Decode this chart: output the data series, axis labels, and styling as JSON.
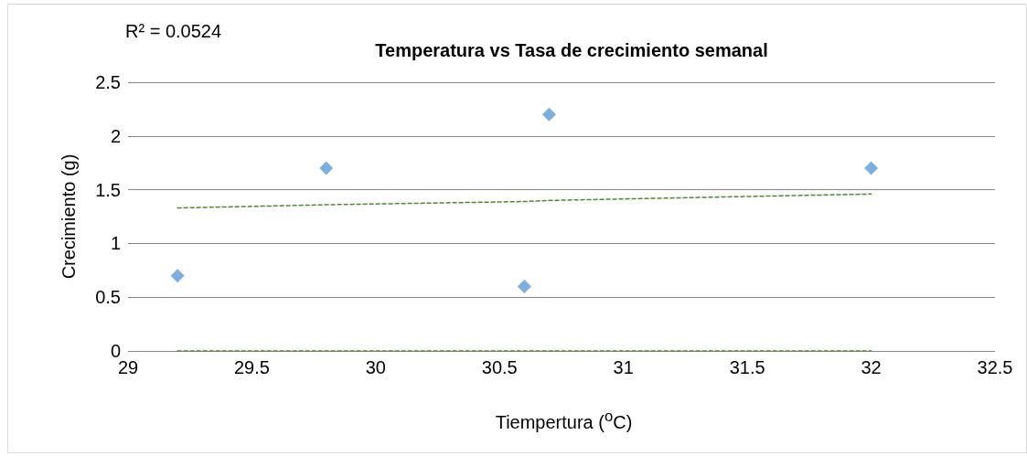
{
  "chart_data": {
    "type": "scatter",
    "title": "Temperatura vs Tasa de crecimiento semanal",
    "xlabel": "Tiempertura ($^{o}$C)",
    "ylabel": "Crecimiento (g)",
    "annotations": [
      "R² = 0.0524"
    ],
    "x": [
      29.2,
      29.8,
      30.6,
      30.7,
      32
    ],
    "series": [
      {
        "color": "#5b9bd5",
        "values": [
          0.7,
          1.7,
          0.6,
          2.2,
          1.7
        ],
        "marker": "diamond"
      },
      {
        "type": "line",
        "values": [
          1.33,
          1.36,
          1.39,
          1.4,
          1.46
        ],
        "color": "#4e8a2e",
        "line_style": "dashed",
        "marker": "none"
      },
      {
        "type": "line",
        "values": [
          0,
          0,
          0,
          0,
          0
        ],
        "color": "#4e8a2e",
        "line_style": "dashed",
        "marker": "none"
      }
    ],
    "xlim": [
      29,
      32.5
    ],
    "xticks": [
      29,
      29.5,
      30,
      30.5,
      31,
      31.5,
      32,
      32.5
    ],
    "ylim": [
      0,
      2.5
    ],
    "yticks": [
      0,
      0.5,
      1,
      1.5,
      2,
      2.5
    ],
    "grid": "y"
  }
}
